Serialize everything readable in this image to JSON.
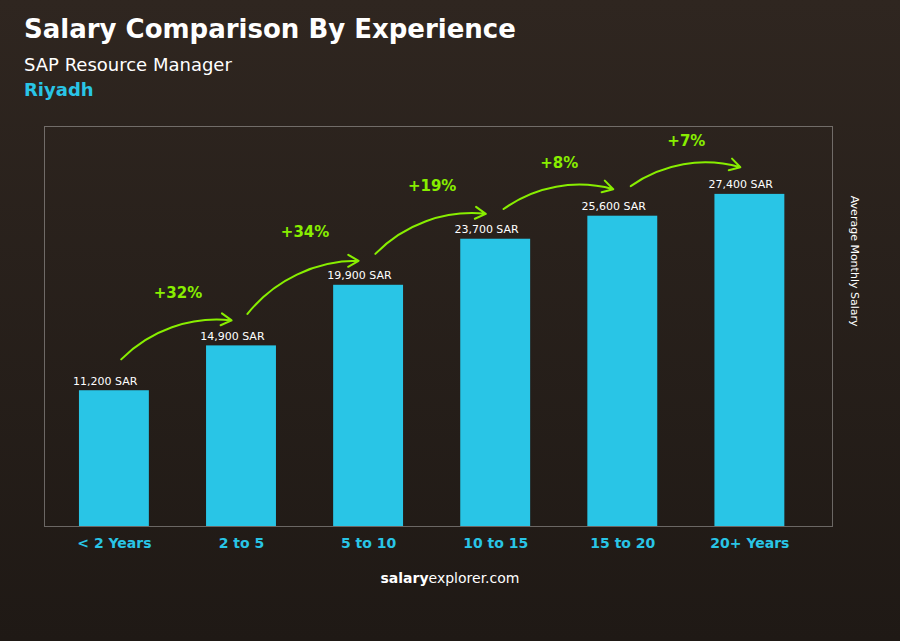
{
  "chart_data": {
    "type": "bar",
    "title": "Salary Comparison By Experience",
    "subtitle": "SAP Resource Manager",
    "city": "Riyadh",
    "categories": [
      "< 2 Years",
      "2 to 5",
      "5 to 10",
      "10 to 15",
      "15 to 20",
      "20+ Years"
    ],
    "values": [
      11200,
      14900,
      19900,
      23700,
      25600,
      27400
    ],
    "value_labels": [
      "11,200 SAR",
      "14,900 SAR",
      "19,900 SAR",
      "23,700 SAR",
      "25,600 SAR",
      "27,400 SAR"
    ],
    "data_labels": true,
    "annotations": [
      "+32%",
      "+34%",
      "+19%",
      "+8%",
      "+7%"
    ],
    "annotation_color": "#88EE00",
    "color": "#29C5E6",
    "category_color": "#29C5E6",
    "ylabel": "Average Monthly Salary",
    "ylim": [
      0,
      33000
    ],
    "tick_labels": "x",
    "grid": false,
    "footer": [
      "salary",
      "explorer.com"
    ]
  }
}
